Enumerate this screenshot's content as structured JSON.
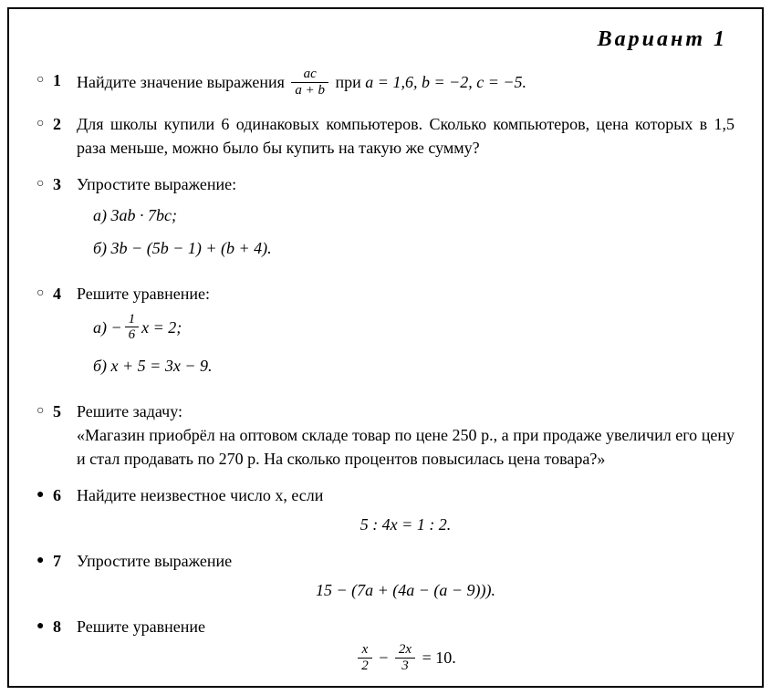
{
  "title": "Вариант  1",
  "markers": {
    "open": "○",
    "filled": "●"
  },
  "problems": {
    "p1": {
      "num": "1",
      "pre": "Найдите значение выражения ",
      "frac_top": "ac",
      "frac_bot": "a + b",
      "post": " при ",
      "vals": "a = 1,6,  b = −2,  c = −5."
    },
    "p2": {
      "num": "2",
      "text": "Для школы купили 6 одинаковых компьютеров. Сколько компьютеров, цена которых в 1,5 раза меньше, можно было бы купить на такую же сумму?"
    },
    "p3": {
      "num": "3",
      "lead": "Упростите выражение:",
      "a": "а)  3ab · 7bc;",
      "b": "б)  3b − (5b − 1) + (b + 4)."
    },
    "p4": {
      "num": "4",
      "lead": "Решите уравнение:",
      "a_pre": "а)  −",
      "a_frac_top": "1",
      "a_frac_bot": "6",
      "a_post": "x  =  2;",
      "b": "б)  x + 5  =  3x − 9."
    },
    "p5": {
      "num": "5",
      "lead": "Решите задачу:",
      "text": "«Магазин приобрёл на оптовом складе товар по цене 250 р., а при продаже увеличил его цену и стал продавать по 270 р. На сколько процентов повысилась цена товара?»"
    },
    "p6": {
      "num": "6",
      "lead": "Найдите неизвестное число x, если",
      "eq": "5 : 4x  =  1 : 2."
    },
    "p7": {
      "num": "7",
      "lead": "Упростите выражение",
      "eq": "15 − (7a + (4a − (a − 9)))."
    },
    "p8": {
      "num": "8",
      "lead": "Решите уравнение",
      "f1_top": "x",
      "f1_bot": "2",
      "mid": " − ",
      "f2_top": "2x",
      "f2_bot": "3",
      "post": " = 10."
    }
  }
}
